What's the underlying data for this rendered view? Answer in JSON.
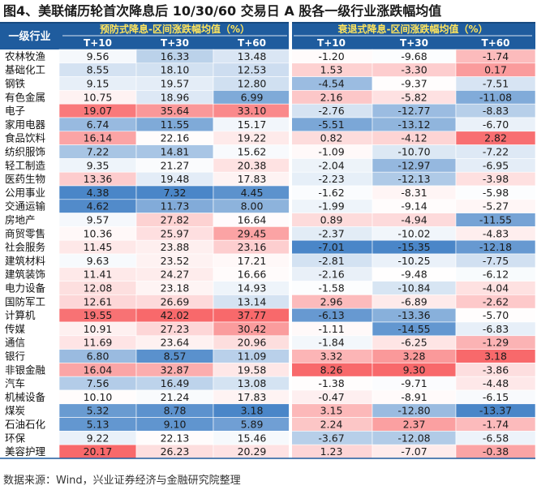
{
  "title": "图4、美联储历轮首次降息后 10/30/60 交易日 A 股各一级行业涨跌幅均值",
  "source": "数据来源：Wind，兴业证券经济与金融研究院整理",
  "colors": {
    "header_bg": "#1f5c9e",
    "header_text": "#ffffff",
    "header_group_text": "#ffe45c",
    "positive_strong": "#f8696b",
    "negative_strong": "#4a86c8",
    "neutral": "#ffffff"
  },
  "chart_data": {
    "type": "heatmap",
    "row_header": "一级行业",
    "groups": [
      {
        "label": "预防式降息-区间涨跌幅均值（%）",
        "columns": [
          "T+10",
          "T+30",
          "T+60"
        ]
      },
      {
        "label": "衰退式降息-区间涨跌幅均值（%）",
        "columns": [
          "T+10",
          "T+30",
          "T+60"
        ]
      }
    ],
    "rows": [
      "农林牧渔",
      "基础化工",
      "钢铁",
      "有色金属",
      "电子",
      "家用电器",
      "食品饮料",
      "纺织服饰",
      "轻工制造",
      "医药生物",
      "公用事业",
      "交通运输",
      "房地产",
      "商贸零售",
      "社会服务",
      "建筑材料",
      "建筑装饰",
      "电力设备",
      "国防军工",
      "计算机",
      "传媒",
      "通信",
      "银行",
      "非银金融",
      "汽车",
      "机械设备",
      "煤炭",
      "石油石化",
      "环保",
      "美容护理"
    ],
    "values": [
      [
        9.56,
        16.33,
        13.48,
        -1.2,
        -9.68,
        -1.74
      ],
      [
        8.55,
        18.1,
        12.53,
        1.53,
        -3.3,
        0.17
      ],
      [
        9.15,
        19.57,
        12.8,
        -4.54,
        -9.37,
        -7.51
      ],
      [
        10.75,
        18.96,
        6.99,
        2.16,
        -5.82,
        -11.08
      ],
      [
        19.07,
        35.64,
        33.1,
        -2.76,
        -12.77,
        -8.83
      ],
      [
        6.74,
        11.55,
        15.17,
        -5.51,
        -13.12,
        -6.7
      ],
      [
        16.14,
        22.16,
        19.22,
        0.82,
        -4.12,
        2.82
      ],
      [
        7.22,
        14.81,
        15.62,
        -1.09,
        -10.7,
        -7.22
      ],
      [
        9.35,
        21.27,
        20.38,
        -2.04,
        -12.97,
        -6.95
      ],
      [
        13.36,
        19.48,
        17.83,
        -2.23,
        -12.13,
        -3.98
      ],
      [
        4.38,
        7.32,
        4.45,
        -1.62,
        -8.31,
        -5.98
      ],
      [
        4.62,
        11.73,
        8.0,
        -1.99,
        -9.14,
        -5.27
      ],
      [
        9.57,
        27.82,
        16.64,
        0.89,
        -4.94,
        -11.55
      ],
      [
        10.36,
        25.97,
        29.45,
        -2.37,
        -10.02,
        -4.83
      ],
      [
        11.45,
        23.88,
        23.16,
        -7.01,
        -15.35,
        -12.18
      ],
      [
        9.63,
        23.52,
        17.21,
        -2.81,
        -10.25,
        -7.75
      ],
      [
        11.41,
        24.27,
        16.66,
        -2.16,
        -9.48,
        -6.12
      ],
      [
        12.08,
        23.18,
        14.93,
        -1.58,
        -10.84,
        -4.04
      ],
      [
        12.61,
        26.69,
        13.14,
        2.96,
        -6.89,
        -2.62
      ],
      [
        19.55,
        42.02,
        37.77,
        -6.13,
        -13.36,
        -5.7
      ],
      [
        10.91,
        27.23,
        30.42,
        -1.11,
        -14.55,
        -6.83
      ],
      [
        11.69,
        23.64,
        20.96,
        -1.84,
        -6.25,
        -1.29
      ],
      [
        6.8,
        8.57,
        11.09,
        3.32,
        3.28,
        3.18
      ],
      [
        16.04,
        32.87,
        19.58,
        8.26,
        9.3,
        -3.86
      ],
      [
        7.56,
        16.49,
        13.08,
        -1.38,
        -9.71,
        -4.48
      ],
      [
        10.1,
        21.24,
        17.83,
        -0.47,
        -8.91,
        -6.15
      ],
      [
        5.32,
        8.78,
        3.18,
        3.15,
        -12.8,
        -13.37
      ],
      [
        5.13,
        9.1,
        5.89,
        2.24,
        2.37,
        -1.74
      ],
      [
        9.22,
        22.13,
        15.46,
        -3.67,
        -12.08,
        -6.58
      ],
      [
        20.17,
        26.23,
        20.29,
        1.23,
        -7.07,
        -0.38
      ]
    ]
  }
}
